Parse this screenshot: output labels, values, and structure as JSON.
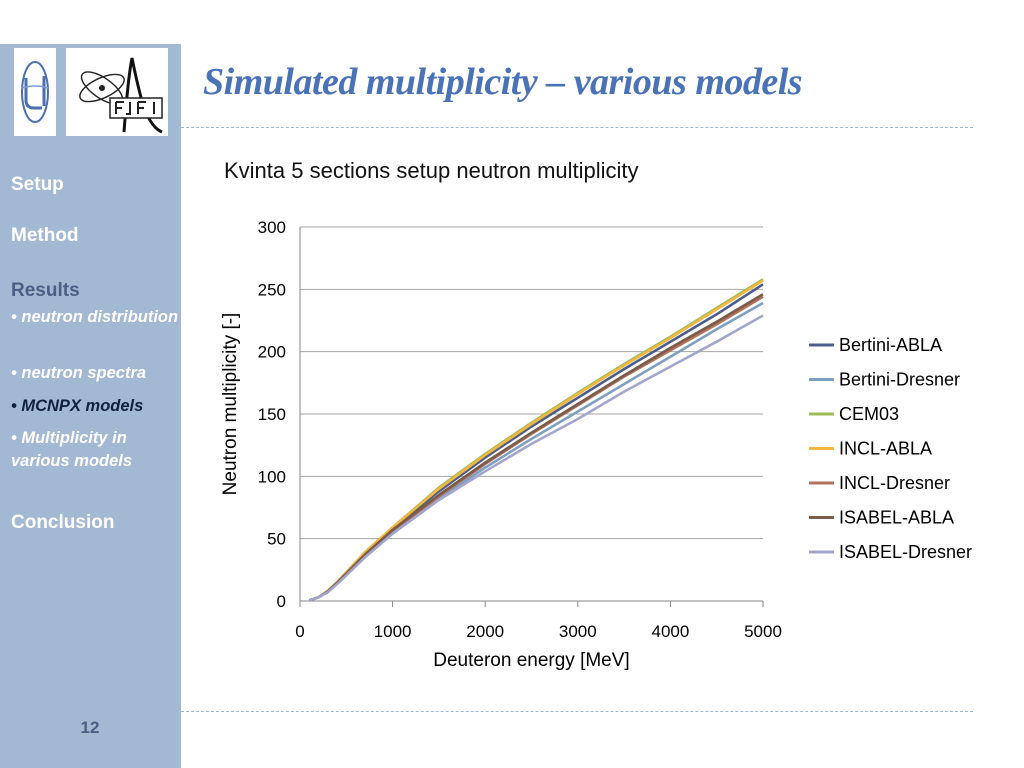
{
  "slide": {
    "title": "Simulated multiplicity – various models",
    "page_number": "12"
  },
  "sidebar": {
    "items": [
      {
        "label": "Setup",
        "active": false
      },
      {
        "label": "Method",
        "active": false
      },
      {
        "label": "Results",
        "active": true
      },
      {
        "label": "Conclusion",
        "active": false
      }
    ],
    "subitems": [
      {
        "label": "• neutron distribution",
        "current": false
      },
      {
        "label": "• neutron spectra",
        "current": false
      },
      {
        "label": "• MCNPX models",
        "current": true
      },
      {
        "label": "• Multiplicity in various models",
        "current": false
      }
    ]
  },
  "colors": {
    "sidebar": "#a3b9d3",
    "title": "#4a72b6"
  },
  "chart_data": {
    "type": "line",
    "title": "Kvinta 5 sections setup neutron multiplicity",
    "xlabel": "Deuteron energy [MeV]",
    "ylabel": "Neutron multiplicity [-]",
    "xlim": [
      0,
      5000
    ],
    "ylim": [
      0,
      300
    ],
    "xticks": [
      0,
      1000,
      2000,
      3000,
      4000,
      5000
    ],
    "yticks": [
      0,
      50,
      100,
      150,
      200,
      250,
      300
    ],
    "grid": true,
    "legend_position": "right",
    "x": [
      100,
      200,
      300,
      400,
      500,
      700,
      1000,
      1500,
      2000,
      2500,
      3000,
      3500,
      4000,
      4500,
      5000
    ],
    "series": [
      {
        "name": "Bertini-ABLA",
        "color": "#4a5d8c",
        "values": [
          0.5,
          3,
          8,
          15,
          22,
          38,
          58,
          88,
          115,
          140,
          163,
          186,
          208,
          230,
          254
        ]
      },
      {
        "name": "Bertini-Dresner",
        "color": "#7f9fc1",
        "values": [
          0.5,
          3,
          7.5,
          14,
          21,
          36,
          55,
          82,
          107,
          130,
          152,
          174,
          196,
          218,
          239
        ]
      },
      {
        "name": "CEM03",
        "color": "#9bbb59",
        "values": [
          0.5,
          3,
          8,
          15,
          23,
          39,
          59,
          91,
          118,
          143,
          167,
          190,
          212,
          235,
          258
        ]
      },
      {
        "name": "INCL-ABLA",
        "color": "#f1b83d",
        "values": [
          0.5,
          3,
          8,
          15,
          23,
          39,
          59,
          90,
          117,
          142,
          166,
          189,
          211,
          234,
          257
        ]
      },
      {
        "name": "INCL-Dresner",
        "color": "#b1715b",
        "values": [
          0.5,
          3,
          7.5,
          14.5,
          21.5,
          37,
          56,
          84,
          110,
          134,
          157,
          180,
          201,
          222,
          244
        ]
      },
      {
        "name": "ISABEL-ABLA",
        "color": "#7b5b4a",
        "values": [
          0.5,
          3,
          7.5,
          14.5,
          22,
          37,
          57,
          85,
          111,
          135,
          158,
          181,
          203,
          224,
          246
        ]
      },
      {
        "name": "ISABEL-Dresner",
        "color": "#a3a6cc",
        "values": [
          0.5,
          3,
          7,
          13.5,
          20.5,
          35,
          54,
          81,
          104,
          126,
          146,
          168,
          188,
          208,
          229
        ]
      }
    ]
  }
}
